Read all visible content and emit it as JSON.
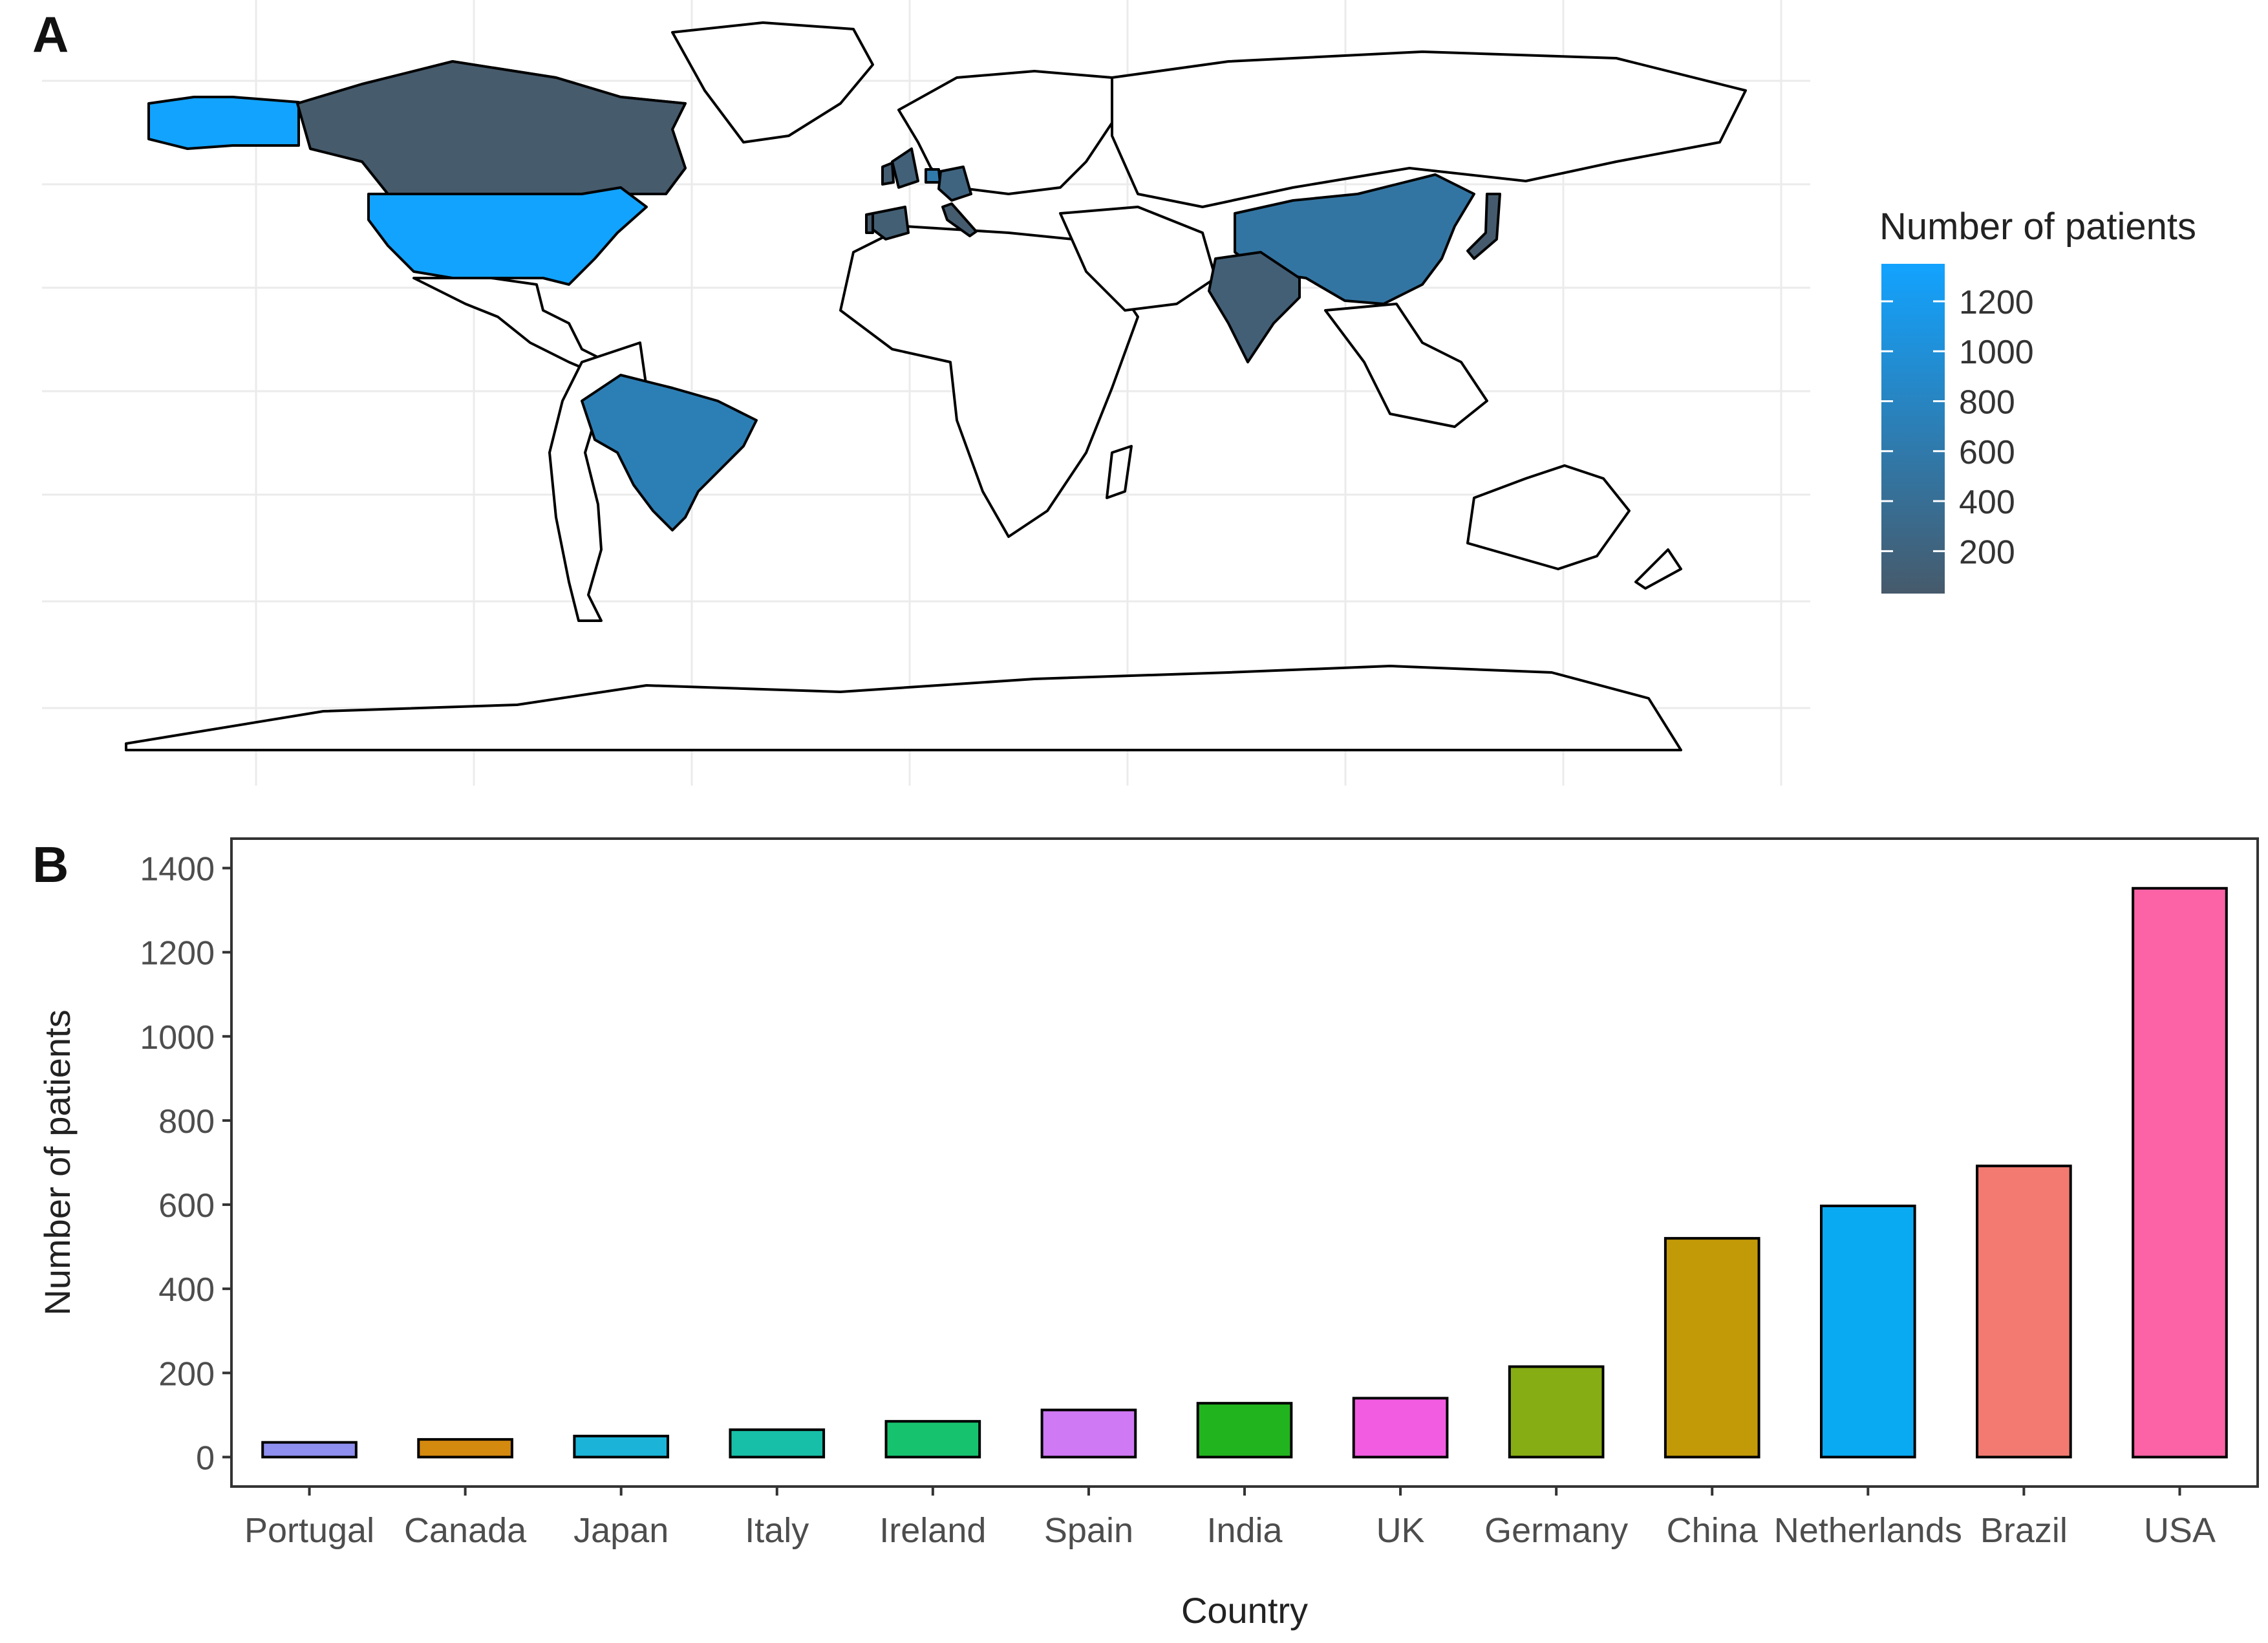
{
  "panels": {
    "a_tag": "A",
    "b_tag": "B"
  },
  "map": {
    "legend_title": "Number of patients",
    "legend_ticks": [
      200,
      400,
      600,
      800,
      1000,
      1200
    ],
    "legend_range": [
      30,
      1350
    ],
    "color_low": "#465a6b",
    "color_high": "#12a3ff",
    "highlighted_countries": [
      "USA",
      "Brazil",
      "Netherlands",
      "China",
      "Germany",
      "UK",
      "India",
      "Spain",
      "Ireland",
      "Italy",
      "Japan",
      "Canada",
      "Portugal"
    ]
  },
  "chart_data": {
    "type": "bar",
    "title": "",
    "xlabel": "Country",
    "ylabel": "Number of patients",
    "categories": [
      "Portugal",
      "Canada",
      "Japan",
      "Italy",
      "Ireland",
      "Spain",
      "India",
      "UK",
      "Germany",
      "China",
      "Netherlands",
      "Brazil",
      "USA"
    ],
    "values": [
      35,
      42,
      50,
      65,
      85,
      112,
      128,
      140,
      215,
      520,
      597,
      692,
      1352
    ],
    "colors": [
      "#8f8fef",
      "#d4890f",
      "#1bb4d8",
      "#17bfa8",
      "#17c26e",
      "#cf79f5",
      "#22b41e",
      "#f25ce0",
      "#86ad14",
      "#c29a07",
      "#0aaaf2",
      "#f37a70",
      "#fb63a6"
    ],
    "ylim": [
      -70,
      1470
    ],
    "yticks": [
      0,
      200,
      400,
      600,
      800,
      1000,
      1200,
      1400
    ],
    "grid": false,
    "legend": "none"
  }
}
